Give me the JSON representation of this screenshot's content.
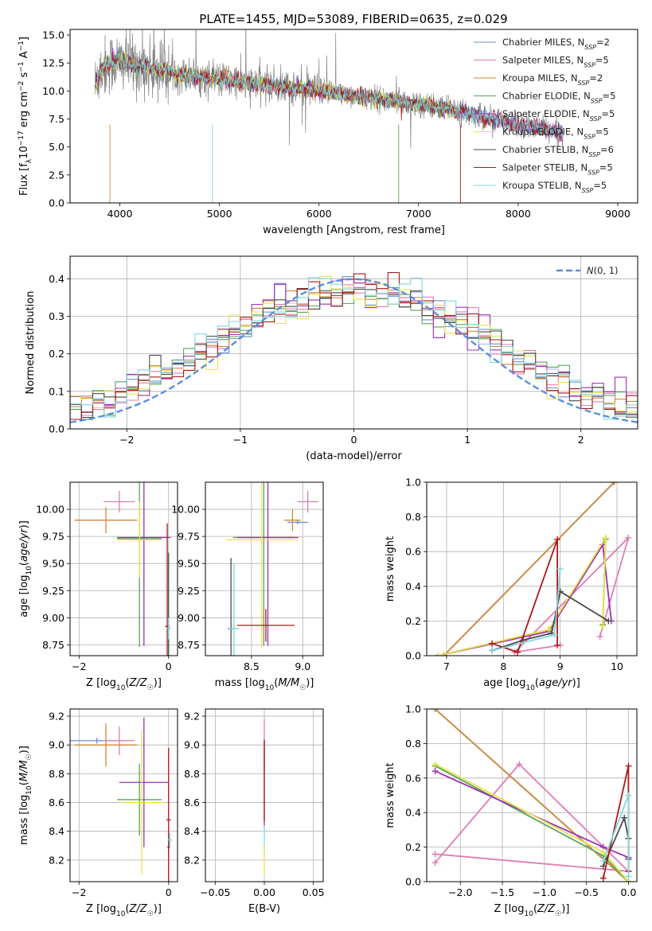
{
  "figure": {
    "title": "PLATE=1455, MJD=53089, FIBERID=0635, z=0.029"
  },
  "series": [
    {
      "name": "Chabrier MILES, N_SSP=2",
      "color": "#6f8fd0"
    },
    {
      "name": "Salpeter MILES, N_SSP=5",
      "color": "#e07cb6"
    },
    {
      "name": "Kroupa MILES, N_SSP=2",
      "color": "#d08a3a"
    },
    {
      "name": "Chabrier ELODIE, N_SSP=5",
      "color": "#5aa55a"
    },
    {
      "name": "Salpeter ELODIE, N_SSP=5",
      "color": "#9b30b5"
    },
    {
      "name": "Kroupa ELODIE, N_SSP=5",
      "color": "#e8e34a"
    },
    {
      "name": "Chabrier STELIB, N_SSP=6",
      "color": "#4a4a4a"
    },
    {
      "name": "Salpeter STELIB, N_SSP=5",
      "color": "#b01818"
    },
    {
      "name": "Kroupa STELIB, N_SSP=5",
      "color": "#7fd8dd"
    }
  ],
  "chart_data": [
    {
      "id": "spectrum",
      "type": "line",
      "title": "PLATE=1455, MJD=53089, FIBERID=0635, z=0.029",
      "xlabel": "wavelength [Angstrom, rest frame]",
      "ylabel": "Flux [f_λ 10^-17 erg cm^-2 s^-1 A^-1]",
      "xlim": [
        3500,
        9200
      ],
      "ylim": [
        0,
        15.5
      ],
      "xticks": [
        4000,
        5000,
        6000,
        7000,
        8000,
        9000
      ],
      "yticks": [
        0.0,
        2.5,
        5.0,
        7.5,
        10.0,
        12.5,
        15.0
      ],
      "grid": false,
      "legend": "top-right",
      "data_series": {
        "name": "data",
        "color": "#808080"
      },
      "model_trend": {
        "x": [
          3750,
          3800,
          3900,
          4000,
          4100,
          4200,
          4400,
          4600,
          4800,
          5000,
          5200,
          5500,
          5800,
          6100,
          6400,
          6700,
          7000,
          7300,
          7450,
          7600,
          7800,
          8000,
          8200,
          8400
        ],
        "y": [
          10.5,
          11.8,
          12.5,
          12.6,
          12.5,
          12.3,
          11.9,
          11.5,
          11.2,
          11.0,
          10.8,
          10.5,
          10.2,
          9.9,
          9.5,
          9.2,
          8.8,
          8.4,
          8.1,
          7.8,
          7.4,
          7.0,
          6.7,
          6.3
        ]
      },
      "data_extent": [
        3750,
        8450
      ]
    },
    {
      "id": "residuals",
      "type": "line",
      "xlabel": "(data-model)/error",
      "ylabel": "Normed distribution",
      "xlim": [
        -2.5,
        2.5
      ],
      "ylim": [
        0,
        0.46
      ],
      "xticks": [
        -2,
        -1,
        0,
        1,
        2
      ],
      "yticks": [
        0.0,
        0.1,
        0.2,
        0.3,
        0.4
      ],
      "grid": true,
      "legend": "top-right",
      "reference": {
        "name": "N(0,1)",
        "color": "#5b8fd8",
        "style": "dashed"
      },
      "bin_width": 0.1
    },
    {
      "id": "age_vs_Z",
      "type": "scatter",
      "xlabel": "Z [log10(Z/Z☉)]",
      "ylabel": "age [log10(age/yr)]",
      "xlim": [
        -2.2,
        0.2
      ],
      "ylim": [
        8.65,
        10.25
      ],
      "xticks": [
        -2,
        0
      ],
      "yticks": [
        8.75,
        9.0,
        9.25,
        9.5,
        9.75,
        10.0
      ],
      "grid": true,
      "points": [
        {
          "s": 0,
          "x": 0.0,
          "y": 8.9,
          "xerr": 0.02,
          "yerr": 0.05
        },
        {
          "s": 1,
          "x": -1.1,
          "y": 10.07,
          "xerr": 0.35,
          "yerr": 0.1
        },
        {
          "s": 2,
          "x": -1.4,
          "y": 9.9,
          "xerr": 0.7,
          "yerr": 0.12
        },
        {
          "s": 3,
          "x": -0.65,
          "y": 9.73,
          "xerr": 0.5,
          "yerr": 1.0
        },
        {
          "s": 4,
          "x": -0.55,
          "y": 9.74,
          "xerr": 0.6,
          "yerr": 1.0
        },
        {
          "s": 5,
          "x": -0.65,
          "y": 9.72,
          "xerr": 0.5,
          "yerr": 0.35
        },
        {
          "s": 6,
          "x": 0.0,
          "y": 8.9,
          "xerr": 0.03,
          "yerr": 0.7
        },
        {
          "s": 7,
          "x": -0.03,
          "y": 8.92,
          "xerr": 0.05,
          "yerr": 0.95
        },
        {
          "s": 8,
          "x": 0.0,
          "y": 8.9,
          "xerr": 0.05,
          "yerr": 0.1
        }
      ]
    },
    {
      "id": "age_vs_mass",
      "type": "scatter",
      "xlabel": "mass [log10(M/M☉)]",
      "ylabel": "",
      "xlim": [
        8.05,
        9.2
      ],
      "ylim": [
        8.65,
        10.25
      ],
      "xticks": [
        8.5,
        9.0
      ],
      "yticks": [
        8.75,
        9.0,
        9.25,
        9.5,
        9.75,
        10.0
      ],
      "grid": true,
      "points": [
        {
          "s": 0,
          "x": 8.95,
          "y": 9.88,
          "xerr": 0.1,
          "yerr": 0.02
        },
        {
          "s": 1,
          "x": 9.05,
          "y": 10.07,
          "xerr": 0.1,
          "yerr": 0.1
        },
        {
          "s": 2,
          "x": 8.9,
          "y": 9.9,
          "xerr": 0.08,
          "yerr": 0.1
        },
        {
          "s": 3,
          "x": 8.62,
          "y": 9.74,
          "xerr": 0.3,
          "yerr": 1.0
        },
        {
          "s": 4,
          "x": 8.66,
          "y": 9.74,
          "xerr": 0.3,
          "yerr": 1.0
        },
        {
          "s": 5,
          "x": 8.6,
          "y": 9.72,
          "xerr": 0.35,
          "yerr": 1.0
        },
        {
          "s": 6,
          "x": 8.3,
          "y": 8.9,
          "xerr": 0.03,
          "yerr": 0.65
        },
        {
          "s": 7,
          "x": 8.64,
          "y": 8.93,
          "xerr": 0.28,
          "yerr": 0.15
        },
        {
          "s": 8,
          "x": 8.33,
          "y": 8.9,
          "xerr": 0.05,
          "yerr": 0.6
        }
      ]
    },
    {
      "id": "weight_vs_age",
      "type": "line",
      "xlabel": "age [log10(age/yr)]",
      "ylabel": "mass weight",
      "xlim": [
        6.65,
        10.35
      ],
      "ylim": [
        0,
        1.0
      ],
      "xticks": [
        7,
        8,
        9,
        10
      ],
      "yticks": [
        0.0,
        0.2,
        0.4,
        0.6,
        0.8,
        1.0
      ],
      "grid": true,
      "series_points": [
        {
          "s": 0,
          "x": [
            6.95,
            9.95
          ],
          "y": [
            0.0,
            1.0
          ]
        },
        {
          "s": 1,
          "x": [
            9.7,
            10.2,
            8.2,
            9.0
          ],
          "y": [
            0.11,
            0.68,
            0.02,
            0.06
          ]
        },
        {
          "s": 2,
          "x": [
            6.95,
            9.95
          ],
          "y": [
            0.0,
            1.0
          ]
        },
        {
          "s": 3,
          "x": [
            6.85,
            8.8,
            9.8,
            9.75
          ],
          "y": [
            0.0,
            0.15,
            0.67,
            0.18
          ]
        },
        {
          "s": 4,
          "x": [
            6.85,
            8.8,
            9.75,
            9.9
          ],
          "y": [
            0.0,
            0.14,
            0.64,
            0.2
          ]
        },
        {
          "s": 5,
          "x": [
            6.85,
            8.8,
            9.8,
            9.75
          ],
          "y": [
            0.0,
            0.15,
            0.68,
            0.17
          ]
        },
        {
          "s": 6,
          "x": [
            7.8,
            8.35,
            8.85,
            9.0,
            9.85
          ],
          "y": [
            0.03,
            0.09,
            0.13,
            0.37,
            0.2
          ]
        },
        {
          "s": 7,
          "x": [
            7.8,
            8.25,
            8.95,
            8.95
          ],
          "y": [
            0.07,
            0.02,
            0.67,
            0.06
          ]
        },
        {
          "s": 8,
          "x": [
            7.8,
            8.9,
            9.0
          ],
          "y": [
            0.03,
            0.12,
            0.5
          ]
        }
      ]
    },
    {
      "id": "mass_vs_Z",
      "type": "scatter",
      "xlabel": "Z [log10(Z/Z☉)]",
      "ylabel": "mass [log10(M/M☉)]",
      "xlim": [
        -2.2,
        0.2
      ],
      "ylim": [
        8.05,
        9.25
      ],
      "xticks": [
        -2,
        0
      ],
      "yticks": [
        8.2,
        8.4,
        8.6,
        8.8,
        9.0,
        9.2
      ],
      "grid": true,
      "points": [
        {
          "s": 0,
          "x": -1.6,
          "y": 9.03,
          "xerr": 0.6,
          "yerr": 0.02
        },
        {
          "s": 1,
          "x": -1.1,
          "y": 9.03,
          "xerr": 0.35,
          "yerr": 0.1
        },
        {
          "s": 2,
          "x": -1.4,
          "y": 9.0,
          "xerr": 0.7,
          "yerr": 0.15
        },
        {
          "s": 3,
          "x": -0.65,
          "y": 8.62,
          "xerr": 0.5,
          "yerr": 0.25
        },
        {
          "s": 4,
          "x": -0.55,
          "y": 8.74,
          "xerr": 0.55,
          "yerr": 0.45
        },
        {
          "s": 5,
          "x": -0.6,
          "y": 8.6,
          "xerr": 0.5,
          "yerr": 0.5
        },
        {
          "s": 6,
          "x": 0.0,
          "y": 8.29,
          "xerr": 0.03,
          "yerr": 0.05
        },
        {
          "s": 7,
          "x": 0.0,
          "y": 8.48,
          "xerr": 0.05,
          "yerr": 0.5
        },
        {
          "s": 8,
          "x": 0.03,
          "y": 8.34,
          "xerr": 0.05,
          "yerr": 0.05
        }
      ]
    },
    {
      "id": "mass_vs_ebv",
      "type": "scatter",
      "xlabel": "E(B-V)",
      "ylabel": "",
      "xlim": [
        -0.06,
        0.06
      ],
      "ylim": [
        8.05,
        9.25
      ],
      "xticks": [
        -0.05,
        0.0,
        0.05
      ],
      "yticks": [
        8.2,
        8.4,
        8.6,
        8.8,
        9.0,
        9.2
      ],
      "grid": true,
      "points": [
        {
          "s": 1,
          "x": 0.0,
          "y": 9.0,
          "xerr": 0.0,
          "yerr": 0.18
        },
        {
          "s": 4,
          "x": 0.0,
          "y": 8.74,
          "xerr": 0.0,
          "yerr": 0.3
        },
        {
          "s": 7,
          "x": 0.0,
          "y": 8.75,
          "xerr": 0.0,
          "yerr": 0.28
        },
        {
          "s": 8,
          "x": 0.0,
          "y": 8.34,
          "xerr": 0.0,
          "yerr": 0.1
        },
        {
          "s": 5,
          "x": 0.0,
          "y": 8.2,
          "xerr": 0.0,
          "yerr": 0.1
        }
      ]
    },
    {
      "id": "weight_vs_Z",
      "type": "line",
      "xlabel": "Z [log10(Z/Z☉)]",
      "ylabel": "mass weight",
      "xlim": [
        -2.4,
        0.1
      ],
      "ylim": [
        0,
        1.0
      ],
      "xticks": [
        -2.0,
        -1.5,
        -1.0,
        -0.5,
        0.0
      ],
      "yticks": [
        0.0,
        0.2,
        0.4,
        0.6,
        0.8,
        1.0
      ],
      "grid": true,
      "series_points": [
        {
          "s": 0,
          "x": [
            -2.3,
            0.0
          ],
          "y": [
            1.0,
            0.0
          ]
        },
        {
          "s": 1,
          "x": [
            -2.3,
            -1.3,
            0.0,
            -2.3
          ],
          "y": [
            0.11,
            0.68,
            0.06,
            0.16
          ]
        },
        {
          "s": 2,
          "x": [
            -2.3,
            0.0
          ],
          "y": [
            1.0,
            0.0
          ]
        },
        {
          "s": 3,
          "x": [
            -2.3,
            -0.3,
            0.0
          ],
          "y": [
            0.67,
            0.15,
            0.0
          ]
        },
        {
          "s": 4,
          "x": [
            -2.3,
            -0.3,
            0.0
          ],
          "y": [
            0.64,
            0.2,
            0.14
          ]
        },
        {
          "s": 5,
          "x": [
            -2.3,
            -0.3,
            0.0
          ],
          "y": [
            0.68,
            0.17,
            0.0
          ]
        },
        {
          "s": 6,
          "x": [
            -0.3,
            -0.05,
            0.0,
            0.0
          ],
          "y": [
            0.09,
            0.37,
            0.25,
            0.13
          ]
        },
        {
          "s": 7,
          "x": [
            -0.3,
            0.0,
            0.0
          ],
          "y": [
            0.02,
            0.67,
            0.06
          ]
        },
        {
          "s": 8,
          "x": [
            -0.3,
            0.0,
            0.0
          ],
          "y": [
            0.12,
            0.5,
            0.03
          ]
        }
      ]
    }
  ]
}
